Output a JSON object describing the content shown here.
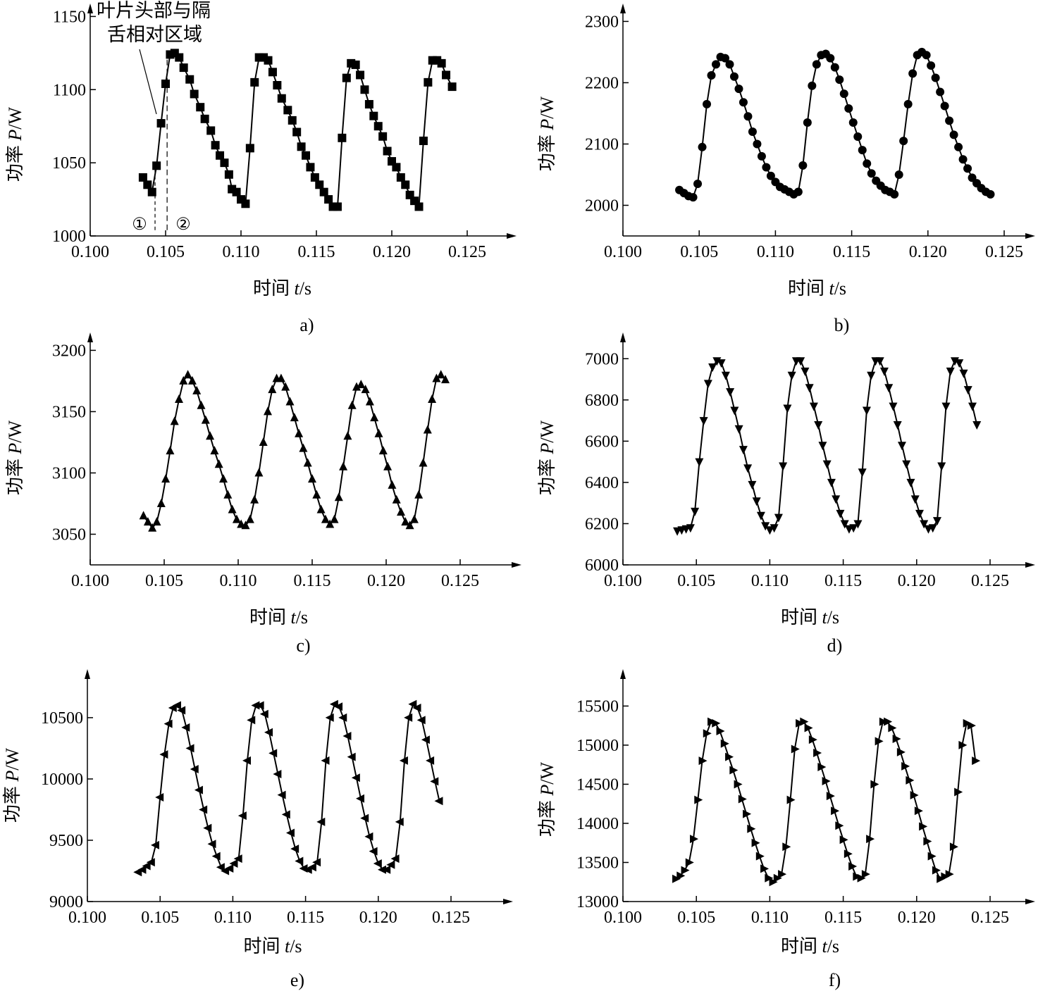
{
  "figure": {
    "shared": {
      "xlabel_prefix": "时间 ",
      "xlabel_var": "t",
      "xlabel_unit": "/s",
      "ylabel_prefix": "功率 ",
      "ylabel_var": "P",
      "ylabel_unit": "/W",
      "xticks": [
        "0.100",
        "0.105",
        "0.110",
        "0.115",
        "0.120",
        "0.125"
      ]
    },
    "annotation": {
      "line1": "叶片头部与隔",
      "line2": "舌相对区域",
      "marker1": "①",
      "marker2": "②"
    }
  },
  "chart_data": [
    {
      "panel": "a)",
      "type": "line",
      "marker": "square",
      "xlabel": "时间 t/s",
      "ylabel": "功率 P/W",
      "xlim": [
        0.1,
        0.129
      ],
      "ylim": [
        1000,
        1155
      ],
      "yticks": [
        1000,
        1050,
        1100,
        1150
      ],
      "series": [
        {
          "x": [
            0.1035,
            0.1038,
            0.1041,
            0.1044,
            0.1047,
            0.105,
            0.1053,
            0.1056,
            0.1059,
            0.1062,
            0.1066,
            0.1069,
            0.1073,
            0.1076,
            0.108,
            0.1083,
            0.1086,
            0.1089,
            0.1092,
            0.1094,
            0.1097,
            0.11,
            0.1103,
            0.1106,
            0.1109,
            0.1112,
            0.1115,
            0.1118,
            0.1121,
            0.1124,
            0.1127,
            0.1131,
            0.1134,
            0.1137,
            0.114,
            0.1143,
            0.1146,
            0.1149,
            0.1152,
            0.1155,
            0.1158,
            0.1161,
            0.1164,
            0.1167,
            0.117,
            0.1173,
            0.1176,
            0.1179,
            0.1182,
            0.1185,
            0.1188,
            0.1191,
            0.1194,
            0.1197,
            0.12,
            0.1203,
            0.1206,
            0.1209,
            0.1212,
            0.1215,
            0.1218,
            0.1221,
            0.1224,
            0.1227,
            0.123,
            0.1233,
            0.1236,
            0.124
          ],
          "y": [
            1040,
            1035,
            1030,
            1048,
            1077,
            1104,
            1124,
            1125,
            1122,
            1115,
            1107,
            1097,
            1088,
            1080,
            1072,
            1062,
            1055,
            1050,
            1042,
            1032,
            1030,
            1025,
            1022,
            1060,
            1105,
            1122,
            1122,
            1120,
            1112,
            1103,
            1094,
            1086,
            1079,
            1071,
            1061,
            1055,
            1047,
            1040,
            1035,
            1030,
            1025,
            1020,
            1020,
            1067,
            1108,
            1118,
            1117,
            1110,
            1100,
            1090,
            1082,
            1075,
            1068,
            1058,
            1051,
            1047,
            1040,
            1035,
            1028,
            1024,
            1020,
            1065,
            1105,
            1120,
            1120,
            1118,
            1110,
            1102
          ]
        }
      ]
    },
    {
      "panel": "b)",
      "type": "line",
      "marker": "circle",
      "xlabel": "时间 t/s",
      "ylabel": "功率 P/W",
      "xlim": [
        0.1,
        0.129
      ],
      "ylim": [
        1950,
        2320
      ],
      "yticks": [
        2000,
        2100,
        2200,
        2300
      ],
      "series": [
        {
          "x": [
            0.1037,
            0.104,
            0.1043,
            0.1046,
            0.1049,
            0.1052,
            0.1055,
            0.1058,
            0.1061,
            0.1064,
            0.1067,
            0.107,
            0.1073,
            0.1076,
            0.1079,
            0.1082,
            0.1085,
            0.1088,
            0.1091,
            0.1094,
            0.1097,
            0.11,
            0.1103,
            0.1106,
            0.1109,
            0.1112,
            0.1115,
            0.1118,
            0.1121,
            0.1124,
            0.1127,
            0.113,
            0.1133,
            0.1136,
            0.1139,
            0.1142,
            0.1145,
            0.1148,
            0.1151,
            0.1154,
            0.1157,
            0.116,
            0.1163,
            0.1166,
            0.1169,
            0.1172,
            0.1175,
            0.1178,
            0.1181,
            0.1184,
            0.1187,
            0.119,
            0.1193,
            0.1196,
            0.1199,
            0.1202,
            0.1205,
            0.1208,
            0.1211,
            0.1214,
            0.1217,
            0.122,
            0.1223,
            0.1226,
            0.1229,
            0.1232,
            0.1235,
            0.1238,
            0.1241
          ],
          "y": [
            2025,
            2020,
            2015,
            2013,
            2035,
            2095,
            2165,
            2212,
            2230,
            2242,
            2240,
            2230,
            2210,
            2190,
            2168,
            2145,
            2120,
            2100,
            2080,
            2062,
            2048,
            2038,
            2030,
            2026,
            2022,
            2018,
            2022,
            2065,
            2135,
            2195,
            2230,
            2245,
            2247,
            2240,
            2225,
            2205,
            2182,
            2158,
            2135,
            2112,
            2090,
            2068,
            2052,
            2040,
            2032,
            2025,
            2022,
            2018,
            2050,
            2105,
            2165,
            2215,
            2245,
            2250,
            2245,
            2228,
            2208,
            2185,
            2162,
            2138,
            2115,
            2095,
            2075,
            2060,
            2045,
            2036,
            2028,
            2022,
            2018
          ]
        }
      ]
    },
    {
      "panel": "c)",
      "type": "line",
      "marker": "triangle-up",
      "xlabel": "时间 t/s",
      "ylabel": "功率 P/W",
      "xlim": [
        0.1,
        0.129
      ],
      "ylim": [
        3025,
        3210
      ],
      "yticks": [
        3050,
        3100,
        3150,
        3200
      ],
      "series": [
        {
          "x": [
            0.1036,
            0.1039,
            0.1042,
            0.1045,
            0.1048,
            0.1051,
            0.1054,
            0.1057,
            0.106,
            0.1063,
            0.1066,
            0.1069,
            0.1072,
            0.1075,
            0.1078,
            0.1081,
            0.1084,
            0.1087,
            0.109,
            0.1093,
            0.1096,
            0.1099,
            0.1102,
            0.1105,
            0.1108,
            0.1111,
            0.1114,
            0.1117,
            0.112,
            0.1123,
            0.1126,
            0.1129,
            0.1132,
            0.1135,
            0.1138,
            0.1141,
            0.1144,
            0.1147,
            0.115,
            0.1153,
            0.1156,
            0.1159,
            0.1162,
            0.1165,
            0.1168,
            0.1171,
            0.1174,
            0.1177,
            0.118,
            0.1183,
            0.1186,
            0.1189,
            0.1192,
            0.1195,
            0.1198,
            0.1201,
            0.1204,
            0.1207,
            0.121,
            0.1213,
            0.1216,
            0.1219,
            0.1222,
            0.1225,
            0.1228,
            0.1231,
            0.1234,
            0.1237,
            0.124
          ],
          "y": [
            3065,
            3060,
            3055,
            3060,
            3075,
            3095,
            3118,
            3142,
            3160,
            3175,
            3180,
            3175,
            3167,
            3155,
            3143,
            3130,
            3118,
            3107,
            3095,
            3082,
            3070,
            3062,
            3058,
            3057,
            3062,
            3078,
            3100,
            3125,
            3150,
            3168,
            3177,
            3177,
            3170,
            3158,
            3145,
            3132,
            3120,
            3108,
            3095,
            3082,
            3070,
            3062,
            3058,
            3062,
            3080,
            3105,
            3130,
            3155,
            3170,
            3172,
            3168,
            3158,
            3145,
            3132,
            3118,
            3105,
            3090,
            3078,
            3068,
            3060,
            3057,
            3062,
            3082,
            3108,
            3135,
            3160,
            3177,
            3180,
            3176
          ]
        }
      ]
    },
    {
      "panel": "d)",
      "type": "line",
      "marker": "triangle-down",
      "xlabel": "时间 t/s",
      "ylabel": "功率 P/W",
      "xlim": [
        0.1,
        0.129
      ],
      "ylim": [
        6000,
        7100
      ],
      "yticks": [
        6000,
        6200,
        6400,
        6600,
        6800,
        7000
      ],
      "series": [
        {
          "x": [
            0.1037,
            0.104,
            0.1043,
            0.1046,
            0.1049,
            0.1052,
            0.1055,
            0.1058,
            0.1061,
            0.1064,
            0.1067,
            0.107,
            0.1073,
            0.1076,
            0.1079,
            0.1082,
            0.1085,
            0.1088,
            0.1091,
            0.1094,
            0.1097,
            0.11,
            0.1103,
            0.1106,
            0.1109,
            0.1112,
            0.1115,
            0.1118,
            0.1121,
            0.1124,
            0.1127,
            0.113,
            0.1133,
            0.1136,
            0.1139,
            0.1142,
            0.1145,
            0.1148,
            0.1151,
            0.1154,
            0.1157,
            0.116,
            0.1163,
            0.1166,
            0.1169,
            0.1172,
            0.1175,
            0.1178,
            0.1181,
            0.1184,
            0.1187,
            0.119,
            0.1193,
            0.1196,
            0.1199,
            0.1202,
            0.1205,
            0.1208,
            0.1211,
            0.1214,
            0.1217,
            0.122,
            0.1223,
            0.1226,
            0.1229,
            0.1232,
            0.1235,
            0.1238,
            0.1241
          ],
          "y": [
            6165,
            6170,
            6175,
            6180,
            6260,
            6500,
            6700,
            6880,
            6960,
            6990,
            6980,
            6920,
            6840,
            6750,
            6660,
            6560,
            6470,
            6390,
            6310,
            6240,
            6190,
            6170,
            6180,
            6230,
            6480,
            6760,
            6920,
            6990,
            6990,
            6940,
            6860,
            6770,
            6680,
            6580,
            6490,
            6400,
            6320,
            6250,
            6200,
            6175,
            6180,
            6200,
            6450,
            6750,
            6920,
            6990,
            6990,
            6940,
            6860,
            6770,
            6680,
            6580,
            6490,
            6400,
            6320,
            6250,
            6200,
            6175,
            6180,
            6215,
            6480,
            6770,
            6940,
            6990,
            6980,
            6930,
            6850,
            6770,
            6680
          ]
        }
      ]
    },
    {
      "panel": "e)",
      "type": "line",
      "marker": "triangle-left",
      "xlabel": "时间 t/s",
      "ylabel": "功率 P/W",
      "xlim": [
        0.1,
        0.129
      ],
      "ylim": [
        9000,
        10850
      ],
      "yticks": [
        9000,
        9500,
        10000,
        10500
      ],
      "series": [
        {
          "x": [
            0.1035,
            0.1038,
            0.1041,
            0.1044,
            0.1047,
            0.105,
            0.1053,
            0.1056,
            0.1059,
            0.1062,
            0.1065,
            0.1068,
            0.1071,
            0.1074,
            0.1077,
            0.108,
            0.1083,
            0.1086,
            0.1089,
            0.1092,
            0.1095,
            0.1098,
            0.1101,
            0.1104,
            0.1107,
            0.111,
            0.1113,
            0.1116,
            0.1119,
            0.1122,
            0.1125,
            0.1128,
            0.1131,
            0.1134,
            0.1137,
            0.114,
            0.1143,
            0.1146,
            0.1149,
            0.1152,
            0.1155,
            0.1158,
            0.1161,
            0.1164,
            0.1167,
            0.117,
            0.1173,
            0.1176,
            0.1179,
            0.1182,
            0.1185,
            0.1188,
            0.1191,
            0.1194,
            0.1197,
            0.12,
            0.1203,
            0.1206,
            0.1209,
            0.1212,
            0.1215,
            0.1218,
            0.1221,
            0.1224,
            0.1227,
            0.123,
            0.1233,
            0.1236,
            0.1239,
            0.1242
          ],
          "y": [
            9240,
            9260,
            9290,
            9320,
            9460,
            9850,
            10200,
            10450,
            10580,
            10600,
            10560,
            10420,
            10250,
            10080,
            9910,
            9750,
            9600,
            9470,
            9370,
            9280,
            9250,
            9270,
            9310,
            9350,
            9700,
            10150,
            10480,
            10600,
            10600,
            10530,
            10380,
            10210,
            10040,
            9870,
            9710,
            9560,
            9430,
            9330,
            9270,
            9260,
            9280,
            9320,
            9650,
            10150,
            10500,
            10610,
            10590,
            10500,
            10350,
            10180,
            10010,
            9840,
            9680,
            9530,
            9410,
            9310,
            9260,
            9260,
            9300,
            9350,
            9650,
            10150,
            10500,
            10610,
            10580,
            10480,
            10320,
            10150,
            9980,
            9820
          ]
        }
      ]
    },
    {
      "panel": "f)",
      "type": "line",
      "marker": "triangle-right",
      "xlabel": "时间 t/s",
      "ylabel": "功率 P/W",
      "xlim": [
        0.1,
        0.129
      ],
      "ylim": [
        13000,
        15900
      ],
      "yticks": [
        13000,
        13500,
        14000,
        14500,
        15000,
        15500
      ],
      "series": [
        {
          "x": [
            0.1036,
            0.1039,
            0.1042,
            0.1045,
            0.1048,
            0.1051,
            0.1054,
            0.1057,
            0.106,
            0.1063,
            0.1066,
            0.1069,
            0.1072,
            0.1075,
            0.1078,
            0.1081,
            0.1084,
            0.1087,
            0.109,
            0.1093,
            0.1096,
            0.1099,
            0.1102,
            0.1105,
            0.1108,
            0.1111,
            0.1114,
            0.1117,
            0.112,
            0.1123,
            0.1126,
            0.1129,
            0.1132,
            0.1135,
            0.1138,
            0.1141,
            0.1144,
            0.1147,
            0.115,
            0.1153,
            0.1156,
            0.1159,
            0.1162,
            0.1165,
            0.1168,
            0.1171,
            0.1174,
            0.1177,
            0.118,
            0.1183,
            0.1186,
            0.1189,
            0.1192,
            0.1195,
            0.1198,
            0.1201,
            0.1204,
            0.1207,
            0.121,
            0.1213,
            0.1216,
            0.1219,
            0.1222,
            0.1225,
            0.1228,
            0.1231,
            0.1234,
            0.1237,
            0.124
          ],
          "y": [
            13290,
            13330,
            13400,
            13500,
            13800,
            14300,
            14800,
            15150,
            15300,
            15280,
            15180,
            15020,
            14850,
            14680,
            14500,
            14310,
            14120,
            13930,
            13750,
            13580,
            13420,
            13300,
            13250,
            13300,
            13350,
            13700,
            14300,
            14950,
            15280,
            15300,
            15220,
            15070,
            14900,
            14720,
            14540,
            14350,
            14160,
            13970,
            13790,
            13610,
            13450,
            13320,
            13300,
            13350,
            13800,
            14500,
            15050,
            15300,
            15300,
            15220,
            15080,
            14910,
            14730,
            14550,
            14360,
            14160,
            13960,
            13770,
            13580,
            13400,
            13290,
            13320,
            13350,
            13700,
            14400,
            15000,
            15280,
            15250,
            14800
          ]
        }
      ]
    }
  ]
}
